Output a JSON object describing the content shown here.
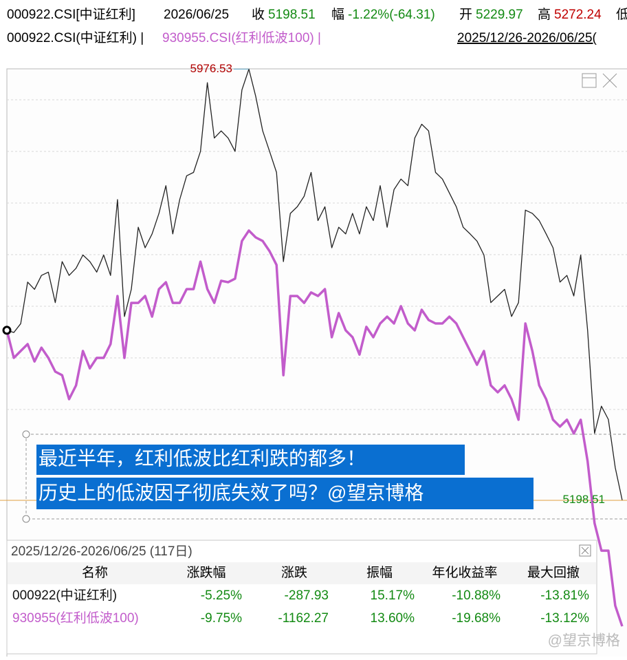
{
  "header": {
    "row1": {
      "code": "000922.CSI[中证红利]",
      "date": "2026/06/25",
      "close_label": "收",
      "close": "5198.51",
      "change_label": "幅",
      "change": "-1.22%(-64.31)",
      "open_label": "开",
      "open": "5229.97",
      "high_label": "高",
      "high": "5272.24",
      "low_label": "低"
    },
    "row2": {
      "series1": "000922.CSI(中证红利) |",
      "series2": "930955.CSI(红利低波100) |",
      "range": "2025/12/26-2026/06/25("
    }
  },
  "chart_data": {
    "type": "line",
    "ylim": [
      4921,
      5977
    ],
    "y2lim": [
      10651,
      12948
    ],
    "series": [
      {
        "name": "000922.CSI(中证红利)",
        "color": "#222222",
        "values": [
          5505,
          5501,
          5517,
          5592,
          5579,
          5604,
          5610,
          5555,
          5629,
          5604,
          5617,
          5641,
          5629,
          5610,
          5641,
          5604,
          5741,
          5530,
          5579,
          5691,
          5654,
          5679,
          5716,
          5766,
          5679,
          5741,
          5784,
          5790,
          5828,
          5952,
          5852,
          5865,
          5852,
          5828,
          5939,
          5976.53,
          5927,
          5865,
          5828,
          5790,
          5629,
          5716,
          5728,
          5747,
          5790,
          5703,
          5728,
          5654,
          5691,
          5679,
          5716,
          5679,
          5728,
          5703,
          5766,
          5691,
          5759,
          5778,
          5766,
          5852,
          5877,
          5865,
          5790,
          5778,
          5753,
          5728,
          5691,
          5679,
          5666,
          5641,
          5555,
          5567,
          5579,
          5530,
          5555,
          5722,
          5716,
          5703,
          5679,
          5654,
          5592,
          5604,
          5567,
          5641,
          5505,
          5319,
          5368,
          5344,
          5257,
          5198.51
        ]
      },
      {
        "name": "930955.CSI(红利低波100)",
        "color": "#c25ccb",
        "axis": "y2",
        "values": [
          11921,
          11813,
          11840,
          11867,
          11799,
          11853,
          11813,
          11759,
          11745,
          11651,
          11705,
          11840,
          11772,
          11813,
          11813,
          11867,
          12056,
          11813,
          12029,
          12029,
          12056,
          11975,
          12083,
          12110,
          12029,
          12029,
          12083,
          12083,
          12191,
          12083,
          12029,
          12116,
          12110,
          12124,
          12272,
          12313,
          12286,
          12272,
          12232,
          12178,
          11745,
          12056,
          12056,
          12029,
          12070,
          12056,
          12083,
          11894,
          11989,
          11921,
          11894,
          11826,
          11935,
          11894,
          11948,
          11975,
          11948,
          12016,
          11948,
          11921,
          12002,
          11962,
          11948,
          11948,
          11975,
          11948,
          11894,
          11840,
          11786,
          11840,
          11705,
          11678,
          11705,
          11651,
          11570,
          11948,
          11840,
          11705,
          11651,
          11570,
          11543,
          11570,
          11516,
          11570,
          11407,
          11164,
          11056,
          11056,
          10840,
          10759
        ]
      }
    ]
  },
  "annotation": {
    "line1": "最近半年，红利低波比红利跌的都多！",
    "line2": "历史上的低波因子彻底失效了吗？@望京博格"
  },
  "table": {
    "title": "2025/12/26-2026/06/25 (117日)",
    "header": [
      "名称",
      "涨跌幅",
      "涨跌",
      "振幅",
      "年化收益率",
      "最大回撤"
    ],
    "rows": [
      [
        "000922(中证红利)",
        "-5.25%",
        "-287.93",
        "15.17%",
        "-10.88%",
        "-13.81%"
      ],
      [
        "930955(红利低波100)",
        "-9.75%",
        "-1162.27",
        "13.60%",
        "-19.68%",
        "-13.12%"
      ]
    ]
  },
  "watermark": "@望京博格"
}
